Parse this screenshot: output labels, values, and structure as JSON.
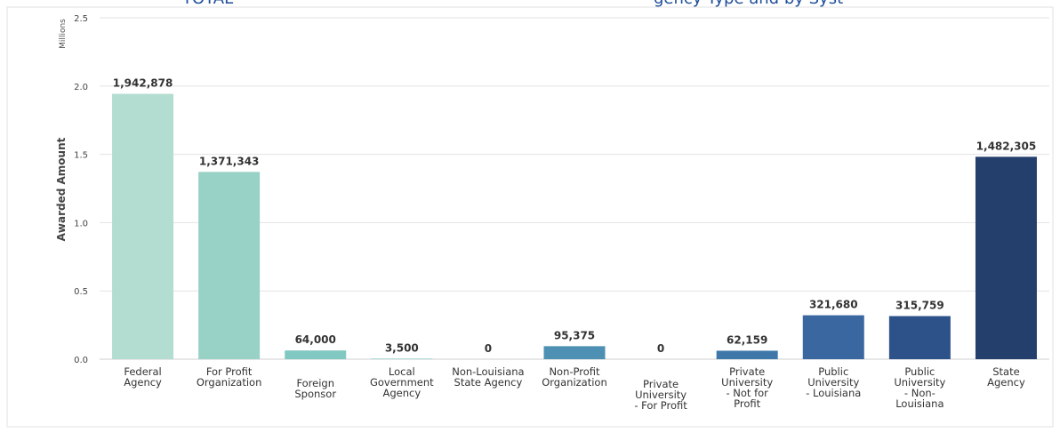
{
  "header": {
    "left_fragment": "TOTAL",
    "right_fragment": "gency Type and by Syst"
  },
  "chart_data": {
    "type": "bar",
    "ylabel": "Awarded Amount",
    "units_label": "Millions",
    "ylim": [
      0,
      2.5
    ],
    "yticks": [
      "0.0",
      "0.5",
      "1.0",
      "1.5",
      "2.0",
      "2.5"
    ],
    "grid": true,
    "categories": [
      [
        "Federal",
        "Agency"
      ],
      [
        "For Profit",
        "Organization"
      ],
      [
        "Foreign",
        "Sponsor"
      ],
      [
        "Local",
        "Government",
        "Agency"
      ],
      [
        "Non-Louisiana",
        "State Agency"
      ],
      [
        "Non-Profit",
        "Organization"
      ],
      [
        "Private",
        "University",
        "- For Profit"
      ],
      [
        "Private",
        "University",
        "- Not for",
        "Profit"
      ],
      [
        "Public",
        "University",
        "- Louisiana"
      ],
      [
        "Public",
        "University",
        "- Non-",
        "Louisiana"
      ],
      [
        "State",
        "Agency"
      ]
    ],
    "values": [
      1942878,
      1371343,
      64000,
      3500,
      0,
      95375,
      0,
      62159,
      321680,
      315759,
      1482305
    ],
    "value_labels": [
      "1,942,878",
      "1,371,343",
      "64,000",
      "3,500",
      "0",
      "95,375",
      "0",
      "62,159",
      "321,680",
      "315,759",
      "1,482,305"
    ],
    "colors": [
      "#b3ddd0",
      "#98d1c5",
      "#82c8c2",
      "#6fb9bd",
      "#5fa8b8",
      "#4e90b3",
      "#4784ad",
      "#3f78a8",
      "#3a67a0",
      "#2d5289",
      "#243f6b"
    ]
  }
}
